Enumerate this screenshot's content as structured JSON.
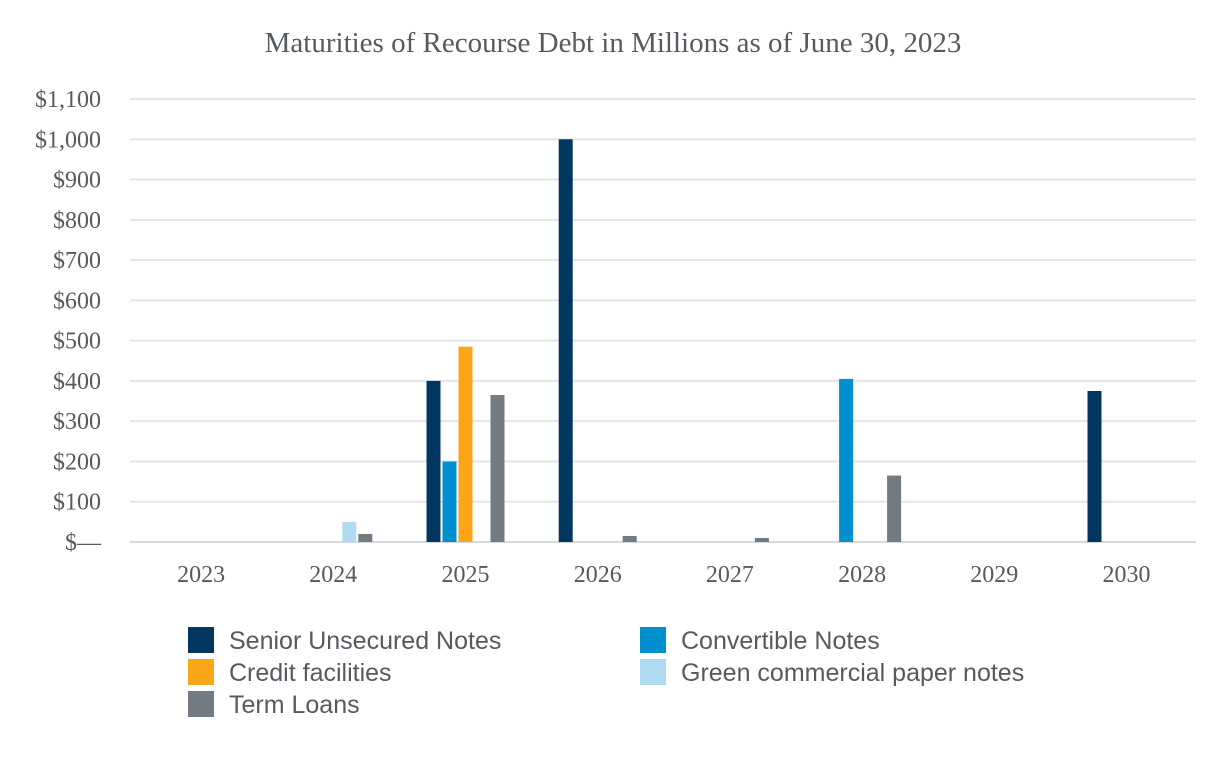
{
  "chart_data": {
    "type": "bar",
    "title": "Maturities of Recourse Debt in Millions as of June 30, 2023",
    "xlabel": "",
    "ylabel": "",
    "ylim": [
      0,
      1100
    ],
    "grid": true,
    "legend_position": "bottom",
    "categories": [
      "2023",
      "2024",
      "2025",
      "2026",
      "2027",
      "2028",
      "2029",
      "2030"
    ],
    "y_ticks": [
      0,
      100,
      200,
      300,
      400,
      500,
      600,
      700,
      800,
      900,
      1000,
      1100
    ],
    "y_tick_labels": [
      "$—",
      "$100",
      "$200",
      "$300",
      "$400",
      "$500",
      "$600",
      "$700",
      "$800",
      "$900",
      "$1,000",
      "$1,100"
    ],
    "series": [
      {
        "name": "Senior Unsecured Notes",
        "color": "#003660",
        "values": [
          0,
          0,
          400,
          1000,
          0,
          0,
          0,
          375
        ]
      },
      {
        "name": "Convertible Notes",
        "color": "#0090d0",
        "values": [
          0,
          0,
          200,
          0,
          0,
          405,
          0,
          0
        ]
      },
      {
        "name": "Credit facilities",
        "color": "#fba519",
        "values": [
          0,
          0,
          485,
          0,
          0,
          0,
          0,
          0
        ]
      },
      {
        "name": "Green commercial paper notes",
        "color": "#aedbf1",
        "values": [
          0,
          50,
          0,
          0,
          0,
          0,
          0,
          0
        ]
      },
      {
        "name": "Term Loans",
        "color": "#737b82",
        "values": [
          0,
          20,
          365,
          15,
          10,
          165,
          0,
          0
        ]
      }
    ]
  }
}
